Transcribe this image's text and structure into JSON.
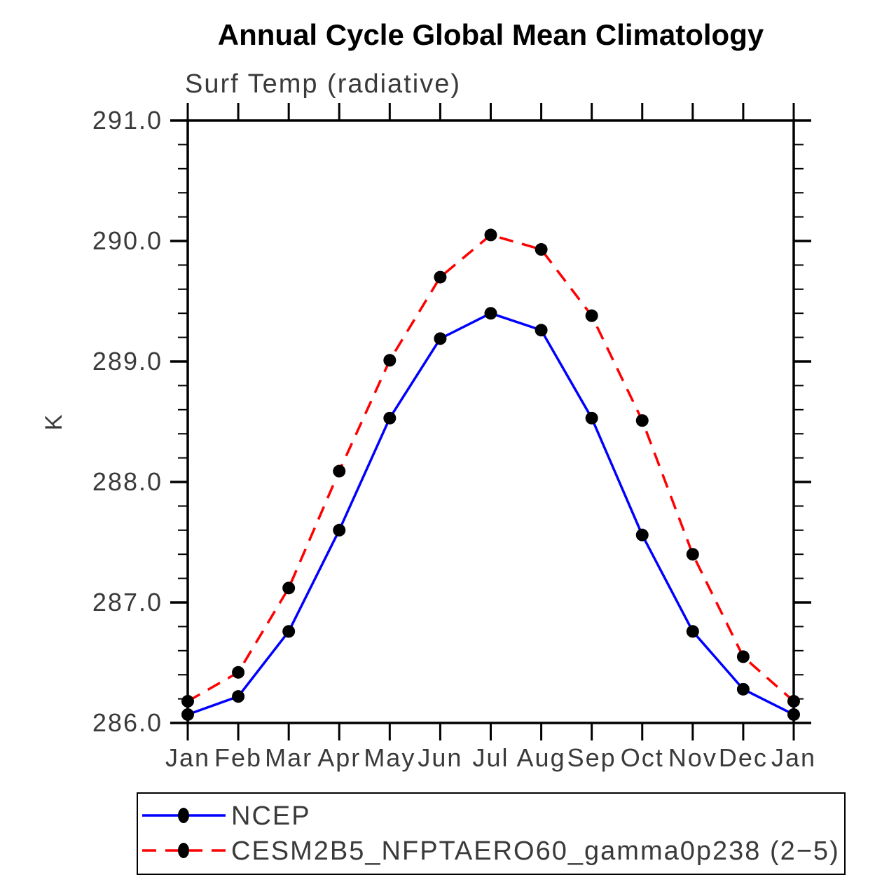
{
  "chart_data": {
    "type": "line",
    "title": "Annual Cycle Global Mean Climatology",
    "subtitle": "Surf Temp (radiative)",
    "ylabel": "K",
    "xlabel": "",
    "categories": [
      "Jan",
      "Feb",
      "Mar",
      "Apr",
      "May",
      "Jun",
      "Jul",
      "Aug",
      "Sep",
      "Oct",
      "Nov",
      "Dec",
      "Jan"
    ],
    "ylim": [
      286.0,
      291.0
    ],
    "y_major_step": 1.0,
    "y_minor_step": 0.2,
    "y_tick_labels": [
      "286.0",
      "287.0",
      "288.0",
      "289.0",
      "290.0",
      "291.0"
    ],
    "grid": false,
    "legend_position": "bottom",
    "frame_color": "#000000",
    "marker": "filled-circle",
    "marker_color": "#000000",
    "series": [
      {
        "name": "NCEP",
        "color": "#0000ff",
        "style": "solid",
        "values": [
          286.07,
          286.22,
          286.76,
          287.6,
          288.53,
          289.19,
          289.4,
          289.26,
          288.53,
          287.56,
          286.76,
          286.28,
          286.07
        ]
      },
      {
        "name": "CESM2B5_NFPTAERO60_gamma0p238 (2−5)",
        "color": "#ff0000",
        "style": "dashed",
        "values": [
          286.18,
          286.42,
          287.12,
          288.09,
          289.01,
          289.7,
          290.05,
          289.93,
          289.38,
          288.51,
          287.4,
          286.55,
          286.18
        ]
      }
    ]
  }
}
